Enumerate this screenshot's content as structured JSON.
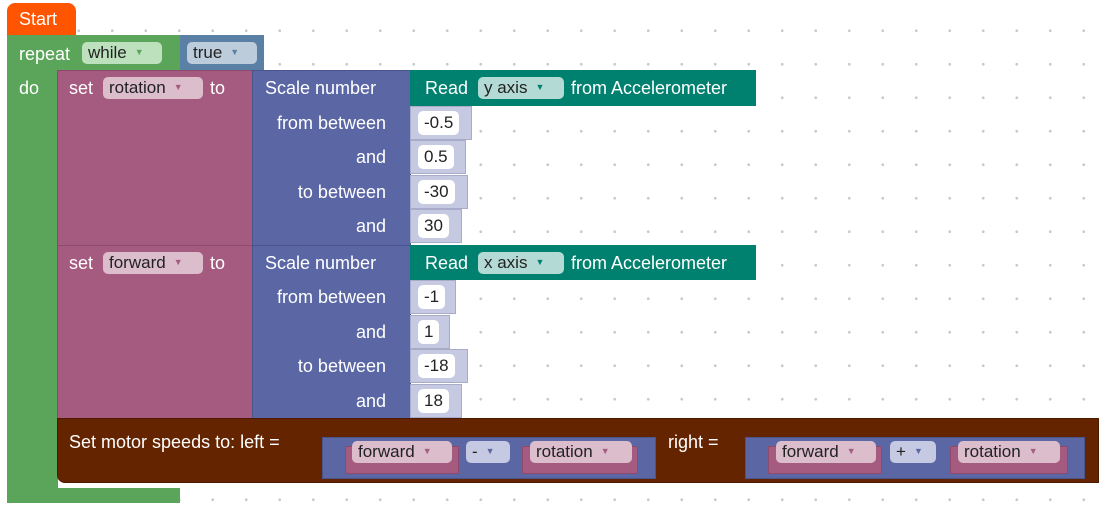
{
  "start": {
    "label": "Start",
    "color": "#ff5500"
  },
  "repeat": {
    "label": "repeat",
    "mode": "while",
    "do_label": "do",
    "condition": "true",
    "color": "#5ba55b"
  },
  "set_rotation": {
    "set": "set",
    "variable": "rotation",
    "to": "to"
  },
  "set_forward": {
    "set": "set",
    "variable": "forward",
    "to": "to"
  },
  "scale1": {
    "title": "Scale number",
    "from_between": "from between",
    "and1": "and",
    "to_between": "to between",
    "and2": "and",
    "values": [
      "-0.5",
      "0.5",
      "-30",
      "30"
    ]
  },
  "scale2": {
    "title": "Scale number",
    "from_between": "from between",
    "and1": "and",
    "to_between": "to between",
    "and2": "and",
    "values": [
      "-1",
      "1",
      "-18",
      "18"
    ]
  },
  "read1": {
    "read": "Read",
    "axis": "y axis",
    "from": "from Accelerometer"
  },
  "read2": {
    "read": "Read",
    "axis": "x axis",
    "from": "from Accelerometer"
  },
  "motor": {
    "label": "Set motor speeds to: left =",
    "right_label": "right =",
    "left": {
      "a": "forward",
      "op": "-",
      "b": "rotation"
    },
    "right": {
      "a": "forward",
      "op": "+",
      "b": "rotation"
    }
  }
}
